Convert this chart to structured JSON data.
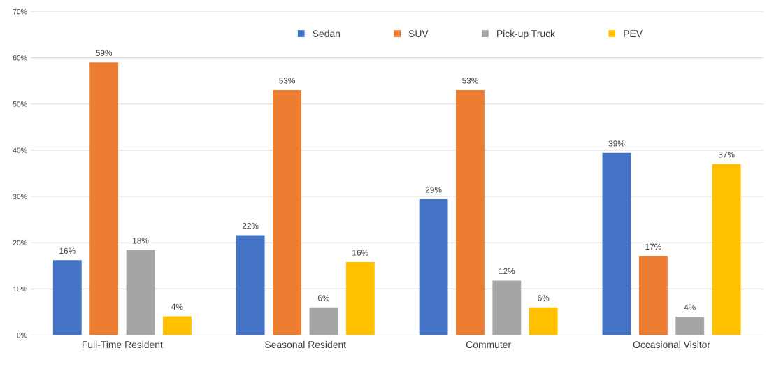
{
  "chart_data": {
    "type": "bar",
    "categories": [
      "Full-Time Resident",
      "Seasonal Resident",
      "Commuter",
      "Occasional Visitor"
    ],
    "series": [
      {
        "name": "Sedan",
        "color": "#4472c4",
        "values": [
          16.2,
          21.6,
          29.4,
          39.4
        ],
        "value_labels": [
          "16%",
          "22%",
          "29%",
          "39%"
        ]
      },
      {
        "name": "SUV",
        "color": "#ed7d31",
        "values": [
          59,
          53,
          53,
          17.1
        ],
        "value_labels": [
          "59%",
          "53%",
          "53%",
          "17%"
        ]
      },
      {
        "name": "Pick-up Truck",
        "color": "#a5a5a5",
        "values": [
          18.4,
          6,
          11.8,
          4
        ],
        "value_labels": [
          "18%",
          "6%",
          "12%",
          "4%"
        ]
      },
      {
        "name": "PEV",
        "color": "#ffc000",
        "values": [
          4.1,
          15.8,
          6,
          37
        ],
        "value_labels": [
          "4%",
          "16%",
          "6%",
          "37%"
        ]
      }
    ],
    "ylim": [
      0,
      70
    ],
    "yticks": [
      {
        "value": 0,
        "label": "0%"
      },
      {
        "value": 10,
        "label": "10%"
      },
      {
        "value": 20,
        "label": "20%"
      },
      {
        "value": 30,
        "label": "30%"
      },
      {
        "value": 40,
        "label": "40%"
      },
      {
        "value": 50,
        "label": "50%"
      },
      {
        "value": 60,
        "label": "60%"
      },
      {
        "value": 70,
        "label": "70%"
      }
    ],
    "grid": "y",
    "legend": "top"
  }
}
